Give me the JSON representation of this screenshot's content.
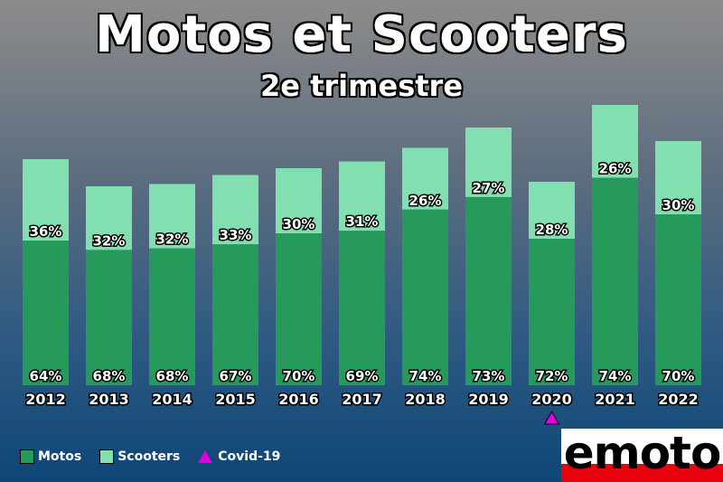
{
  "chart_data": {
    "type": "bar",
    "stacked": true,
    "title": "Motos et Scooters",
    "subtitle": "2e trimestre",
    "categories": [
      "2012",
      "2013",
      "2014",
      "2015",
      "2016",
      "2017",
      "2018",
      "2019",
      "2020",
      "2021",
      "2022"
    ],
    "series": [
      {
        "name": "Motos",
        "color": "#259a5a",
        "values": [
          64,
          68,
          68,
          67,
          70,
          69,
          74,
          73,
          72,
          74,
          70
        ],
        "labels": [
          "64%",
          "68%",
          "68%",
          "67%",
          "70%",
          "69%",
          "74%",
          "73%",
          "72%",
          "74%",
          "70%"
        ]
      },
      {
        "name": "Scooters",
        "color": "#82e0b0",
        "values": [
          36,
          32,
          32,
          33,
          30,
          31,
          26,
          27,
          28,
          26,
          30
        ],
        "labels": [
          "36%",
          "32%",
          "32%",
          "33%",
          "30%",
          "31%",
          "26%",
          "27%",
          "28%",
          "26%",
          "30%"
        ]
      }
    ],
    "relative_totals": [
      100,
      88,
      89,
      93,
      96,
      99,
      105,
      114,
      90,
      124,
      108
    ],
    "marker": {
      "category": "2020",
      "name": "Covid-19",
      "shape": "triangle",
      "color": "#e000e0"
    },
    "legend": "bottom-left",
    "grid": false
  },
  "legend": {
    "motos": "Motos",
    "scooters": "Scooters",
    "covid": "Covid-19"
  },
  "logo": {
    "text": "emoto"
  }
}
